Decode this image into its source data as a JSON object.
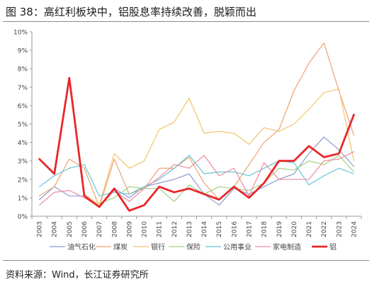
{
  "figure": {
    "title": "图 38：高红利板块中，铝股息率持续改善，脱颖而出",
    "source": "资料来源：Wind，长江证券研究所"
  },
  "chart_data": {
    "type": "line",
    "x": [
      "2003",
      "2004",
      "2005",
      "2006",
      "2007",
      "2008",
      "2009",
      "2010",
      "2011",
      "2012",
      "2013",
      "2014",
      "2015",
      "2016",
      "2017",
      "2018",
      "2019",
      "2020",
      "2021",
      "2022",
      "2023",
      "2024"
    ],
    "ylim": [
      0,
      10
    ],
    "y_ticks": [
      "0%",
      "1%",
      "2%",
      "3%",
      "4%",
      "5%",
      "6%",
      "7%",
      "8%",
      "9%",
      "10%"
    ],
    "grid": false,
    "legend_position": "bottom",
    "series": [
      {
        "name": "油气石化",
        "color": "#8e9bd0",
        "width": 1.2,
        "values": [
          0.9,
          1.6,
          1.1,
          1.1,
          0.5,
          1.5,
          1.0,
          1.6,
          1.8,
          2.0,
          2.3,
          1.2,
          0.6,
          1.5,
          1.2,
          1.6,
          2.0,
          2.3,
          3.4,
          4.3,
          3.6,
          2.7
        ]
      },
      {
        "name": "煤炭",
        "color": "#f0a070",
        "width": 1.2,
        "values": [
          1.1,
          1.6,
          3.1,
          2.6,
          0.5,
          3.1,
          1.2,
          1.5,
          2.6,
          2.6,
          3.2,
          1.8,
          0.9,
          1.6,
          2.8,
          4.0,
          4.7,
          6.8,
          8.3,
          9.4,
          6.8,
          4.4
        ]
      },
      {
        "name": "银行",
        "color": "#f3c46a",
        "width": 1.2,
        "values": [
          null,
          null,
          null,
          1.2,
          0.6,
          3.4,
          2.6,
          3.0,
          4.7,
          5.1,
          6.4,
          4.5,
          4.6,
          4.5,
          3.9,
          4.8,
          4.6,
          5.0,
          5.8,
          6.7,
          6.9,
          3.0
        ]
      },
      {
        "name": "保险",
        "color": "#9fd080",
        "width": 1.2,
        "values": [
          null,
          null,
          null,
          null,
          0.7,
          1.0,
          1.6,
          1.5,
          1.5,
          0.8,
          1.7,
          1.2,
          1.6,
          1.5,
          1.4,
          1.8,
          2.6,
          2.5,
          3.0,
          2.8,
          3.3,
          2.4
        ]
      },
      {
        "name": "公用事业",
        "color": "#5fc6d6",
        "width": 1.2,
        "values": [
          1.6,
          2.2,
          2.6,
          2.8,
          1.1,
          1.3,
          1.2,
          1.6,
          2.0,
          2.6,
          3.3,
          2.3,
          2.4,
          2.4,
          2.2,
          2.6,
          3.0,
          2.9,
          1.7,
          2.2,
          2.6,
          2.3
        ]
      },
      {
        "name": "家电制造",
        "color": "#ec8aa0",
        "width": 1.2,
        "values": [
          0.6,
          1.3,
          1.4,
          1.0,
          0.5,
          1.4,
          0.8,
          1.5,
          2.1,
          2.8,
          2.6,
          3.3,
          2.2,
          2.6,
          1.1,
          2.9,
          2.0,
          2.0,
          2.0,
          3.0,
          3.1,
          3.5
        ]
      },
      {
        "name": "铝",
        "color": "#e8272b",
        "width": 2.8,
        "values": [
          3.1,
          2.3,
          7.5,
          1.1,
          0.5,
          1.5,
          0.3,
          0.6,
          1.6,
          1.3,
          1.5,
          1.2,
          0.9,
          1.6,
          1.0,
          1.8,
          3.0,
          3.0,
          3.8,
          3.2,
          3.4,
          5.5
        ]
      }
    ]
  }
}
